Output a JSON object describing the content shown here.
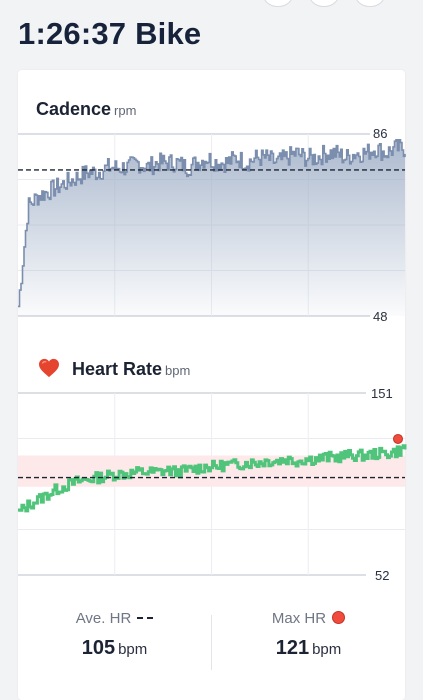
{
  "header": {
    "title": "1:26:37 Bike"
  },
  "cadence": {
    "title": "Cadence",
    "unit": "rpm",
    "max_label": "86",
    "min_label": "48",
    "ylim": [
      48,
      86
    ],
    "average": 78.5,
    "fill_color": "#9eaec6",
    "line_color": "#7b8eae"
  },
  "heart_rate": {
    "title": "Heart Rate",
    "unit": "bpm",
    "max_label": "151",
    "min_label": "52",
    "ylim": [
      52,
      151
    ],
    "average": 105,
    "zone_range": [
      100,
      117
    ],
    "line_color": "#4fc47a",
    "zone_color": "#fde8ea",
    "max_marker_color": "#f04b3c",
    "icon": "heart-icon"
  },
  "stats": {
    "ave_hr": {
      "label": "Ave. HR",
      "value": "105",
      "unit": "bpm"
    },
    "max_hr": {
      "label": "Max HR",
      "value": "121",
      "unit": "bpm"
    }
  },
  "chart_data": [
    {
      "type": "line",
      "title": "Cadence",
      "ylabel": "rpm",
      "ylim": [
        48,
        86
      ],
      "grid": true,
      "series": [
        {
          "values": [
            50,
            71,
            73,
            74,
            75,
            76,
            77,
            78,
            78,
            79,
            79,
            79,
            80,
            79,
            80,
            80,
            80,
            79,
            80,
            81,
            80,
            80,
            81,
            80,
            81,
            81,
            80,
            81,
            82,
            81,
            81,
            82,
            82,
            81,
            82,
            82,
            83,
            82,
            83,
            83
          ]
        }
      ]
    },
    {
      "type": "line",
      "title": "Heart Rate",
      "ylabel": "bpm",
      "ylim": [
        52,
        151
      ],
      "grid": true,
      "series": [
        {
          "values": [
            86,
            90,
            93,
            96,
            99,
            101,
            103,
            104,
            105,
            106,
            107,
            107,
            108,
            108,
            108,
            109,
            108,
            109,
            110,
            111,
            111,
            112,
            112,
            113,
            113,
            114,
            114,
            115,
            114,
            115,
            115,
            116,
            116,
            117,
            117,
            117,
            118,
            118,
            119,
            121
          ]
        }
      ]
    }
  ]
}
